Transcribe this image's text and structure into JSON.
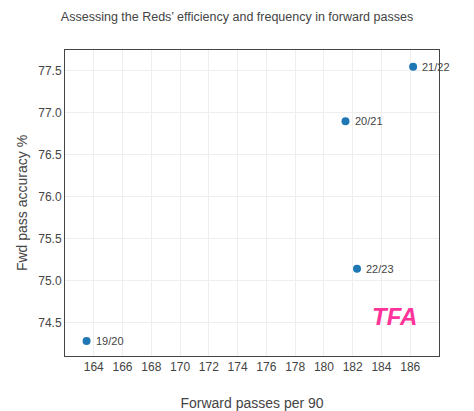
{
  "chart_data": {
    "type": "scatter",
    "title": "Assessing the Reds’ efficiency and frequency in forward passes",
    "xlabel": "Forward passes per 90",
    "ylabel": "Fwd pass accuracy %",
    "x": [
      163.5,
      181.5,
      186.2,
      182.3
    ],
    "values": [
      74.28,
      76.9,
      77.55,
      75.14
    ],
    "annotations": [
      {
        "text": "19/20",
        "x": 163.5,
        "y": 74.28
      },
      {
        "text": "20/21",
        "x": 181.5,
        "y": 76.9
      },
      {
        "text": "21/22",
        "x": 186.2,
        "y": 77.55
      },
      {
        "text": "22/23",
        "x": 182.3,
        "y": 75.14
      },
      {
        "text": "TFA",
        "color": "#ff3399"
      }
    ],
    "xlim": [
      162,
      188
    ],
    "ylim": [
      74.1,
      77.75
    ],
    "xticks": [
      164,
      166,
      168,
      170,
      172,
      174,
      176,
      178,
      180,
      182,
      184,
      186
    ],
    "yticks": [
      74.5,
      {
        "value": 75,
        "label": "75.0"
      },
      75.5,
      {
        "value": 76,
        "label": "76.0"
      },
      76.5,
      {
        "value": 77,
        "label": "77.0"
      },
      77.5
    ],
    "grid": true
  }
}
